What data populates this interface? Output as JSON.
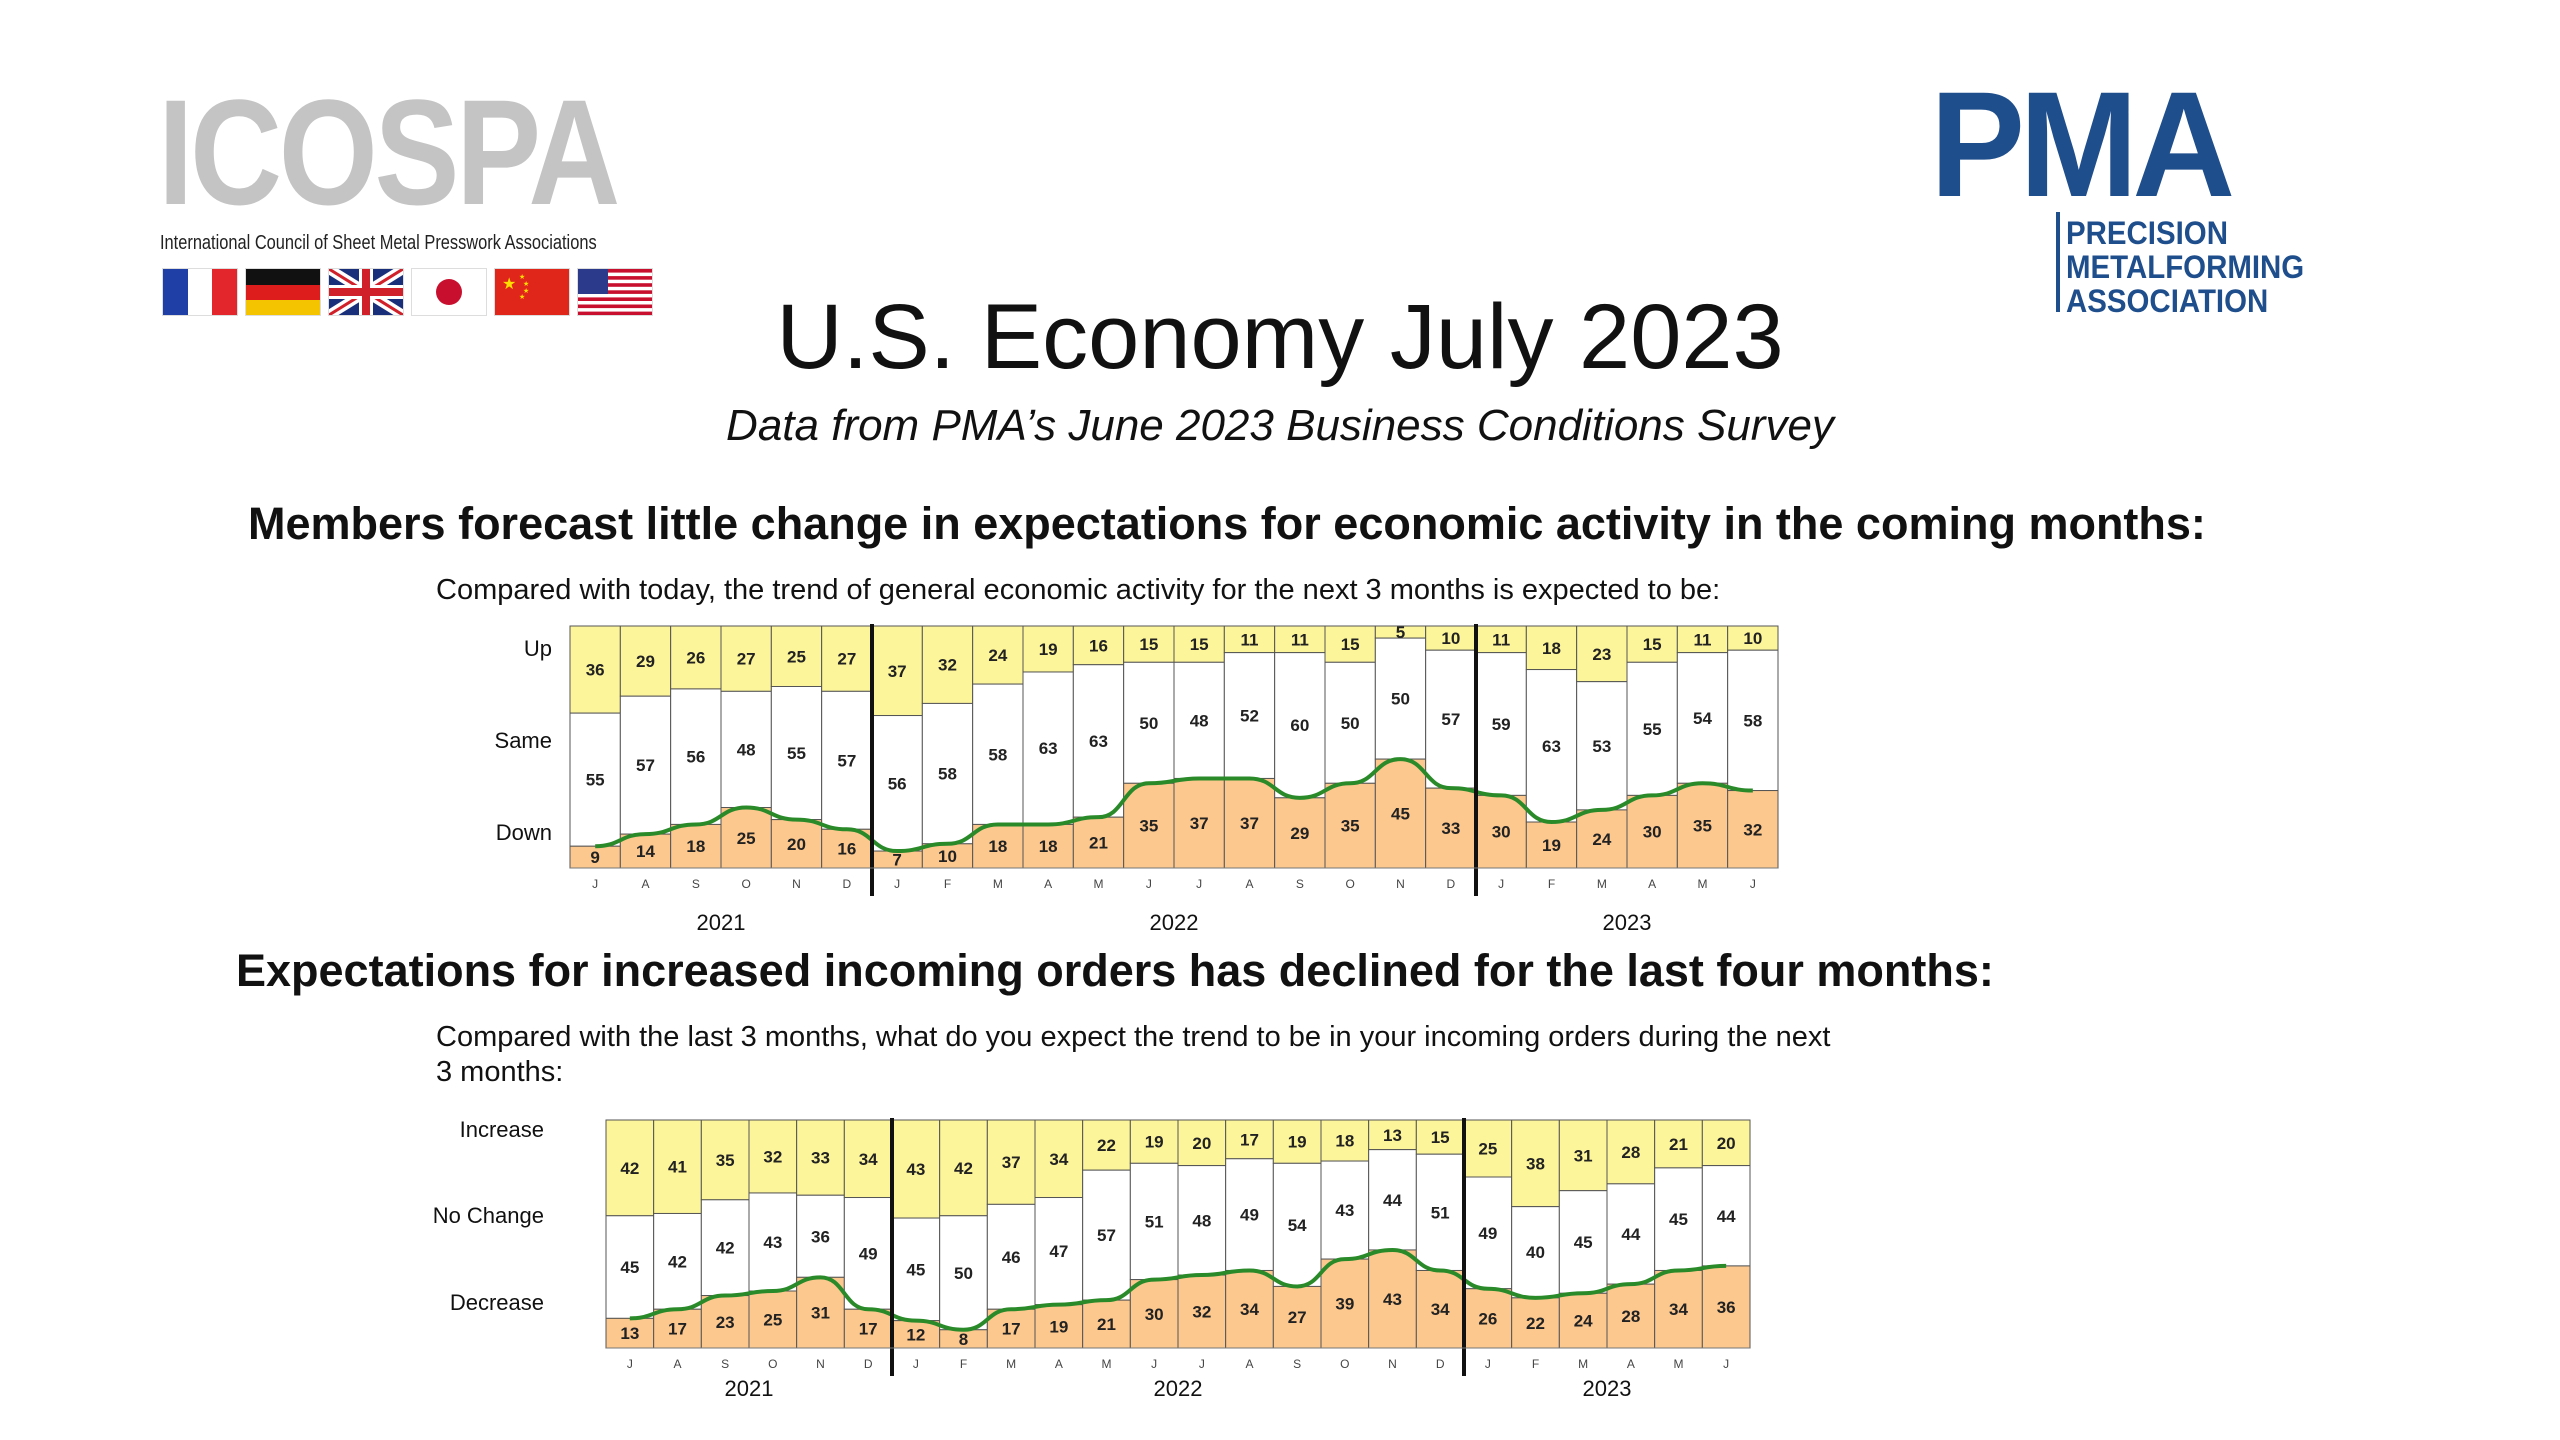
{
  "logos": {
    "icospa": {
      "word": "ICOSPA",
      "subtitle": "International Council of Sheet Metal Presswork Associations",
      "flags": [
        "france-flag",
        "germany-flag",
        "uk-flag",
        "japan-flag",
        "china-flag",
        "usa-flag"
      ]
    },
    "pma": {
      "word": "PMA",
      "lines": [
        "PRECISION",
        "METALFORMING",
        "ASSOCIATION"
      ],
      "color": "#1f4e8c"
    }
  },
  "title": "U.S. Economy July 2023",
  "subtitle": "Data from PMA’s June 2023 Business Conditions Survey",
  "colors": {
    "up": "#fdf59a",
    "same": "#ffffff",
    "down": "#fcc88e",
    "trend": "#2a8a2a",
    "divider": "#111111"
  },
  "chart_data": [
    {
      "type": "bar",
      "stacked": true,
      "heading": "Members forecast little change in expectations for economic activity in the coming months:",
      "caption": "Compared with today, the trend of general economic activity for the next 3 months is expected to be:",
      "row_labels": [
        "Up",
        "Same",
        "Down"
      ],
      "months": [
        "J",
        "A",
        "S",
        "O",
        "N",
        "D",
        "J",
        "F",
        "M",
        "A",
        "M",
        "J",
        "J",
        "A",
        "S",
        "O",
        "N",
        "D",
        "J",
        "F",
        "M",
        "A",
        "M",
        "J"
      ],
      "years": [
        "2021",
        "2022",
        "2023"
      ],
      "series": [
        {
          "name": "Up",
          "values": [
            36,
            29,
            26,
            27,
            25,
            27,
            37,
            32,
            24,
            19,
            16,
            15,
            15,
            11,
            11,
            15,
            5,
            10,
            11,
            18,
            23,
            15,
            11,
            10
          ]
        },
        {
          "name": "Same",
          "values": [
            55,
            57,
            56,
            48,
            55,
            57,
            56,
            58,
            58,
            63,
            63,
            50,
            48,
            52,
            60,
            50,
            50,
            57,
            59,
            63,
            53,
            55,
            54,
            58
          ]
        },
        {
          "name": "Down",
          "values": [
            9,
            14,
            18,
            25,
            20,
            16,
            7,
            10,
            18,
            18,
            21,
            35,
            37,
            37,
            29,
            35,
            45,
            33,
            30,
            19,
            24,
            30,
            35,
            32
          ]
        }
      ],
      "ylim": [
        0,
        100
      ]
    },
    {
      "type": "bar",
      "stacked": true,
      "heading": "Expectations for increased incoming orders has declined for the last four months:",
      "caption": "Compared with the last 3 months, what do you expect the trend to be in your incoming orders during the next 3 months:",
      "row_labels": [
        "Increase",
        "No Change",
        "Decrease"
      ],
      "months": [
        "J",
        "A",
        "S",
        "O",
        "N",
        "D",
        "J",
        "F",
        "M",
        "A",
        "M",
        "J",
        "J",
        "A",
        "S",
        "O",
        "N",
        "D",
        "J",
        "F",
        "M",
        "A",
        "M",
        "J"
      ],
      "years": [
        "2021",
        "2022",
        "2023"
      ],
      "series": [
        {
          "name": "Increase",
          "values": [
            42,
            41,
            35,
            32,
            33,
            34,
            43,
            42,
            37,
            34,
            22,
            19,
            20,
            17,
            19,
            18,
            13,
            15,
            25,
            38,
            31,
            28,
            21,
            20
          ]
        },
        {
          "name": "No Change",
          "values": [
            45,
            42,
            42,
            43,
            36,
            49,
            45,
            50,
            46,
            47,
            57,
            51,
            48,
            49,
            54,
            43,
            44,
            51,
            49,
            40,
            45,
            44,
            45,
            44
          ]
        },
        {
          "name": "Decrease",
          "values": [
            13,
            17,
            23,
            25,
            31,
            17,
            12,
            8,
            17,
            19,
            21,
            30,
            32,
            34,
            27,
            39,
            43,
            34,
            26,
            22,
            24,
            28,
            34,
            36
          ]
        }
      ],
      "ylim": [
        0,
        100
      ]
    }
  ]
}
